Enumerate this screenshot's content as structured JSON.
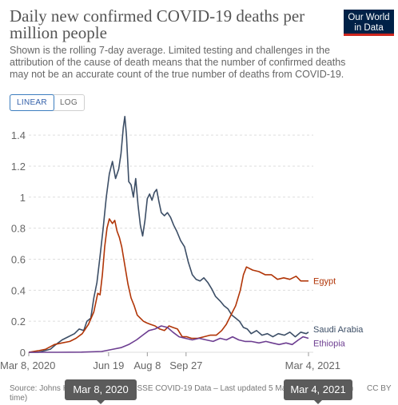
{
  "header": {
    "title": "Daily new confirmed COVID-19 deaths per million people",
    "subtitle": "Shown is the rolling 7-day average. Limited testing and challenges in the attribution of the cause of death means that the number of confirmed deaths may not be an accurate count of the true number of deaths from COVID-19.",
    "logo_line1": "Our World",
    "logo_line2": "in Data"
  },
  "controls": {
    "linear_label": "LINEAR",
    "log_label": "LOG",
    "active": "LINEAR"
  },
  "footer": {
    "source": "Source: Johns Hopkins University CSSE COVID-19 Data – Last updated 5 March, 10:05 (London time)",
    "license": "CC BY"
  },
  "timeline": {
    "start_label": "Mar 8, 2020",
    "end_label": "Mar 4, 2021"
  },
  "colors": {
    "saudi": "#3c4e66",
    "egypt": "#b13507",
    "ethiopia": "#6d3e91",
    "grid": "#dddddd",
    "axis_text": "#666666"
  },
  "chart_data": {
    "type": "line",
    "title": "Daily new confirmed COVID-19 deaths per million people",
    "x_type": "date",
    "xlim": [
      "2020-03-08",
      "2021-03-04"
    ],
    "ylim": [
      0,
      1.55
    ],
    "y_ticks": [
      0,
      0.2,
      0.4,
      0.6,
      0.8,
      1,
      1.2,
      1.4
    ],
    "y_tick_labels": [
      "0",
      "0.2",
      "0.4",
      "0.6",
      "0.8",
      "1",
      "1.2",
      "1.4"
    ],
    "x_ticks": [
      "2020-03-08",
      "2020-06-19",
      "2020-08-08",
      "2020-09-27",
      "2021-03-04"
    ],
    "x_tick_labels": [
      "Mar 8, 2020",
      "Jun 19",
      "Aug 8",
      "Sep 27",
      "Mar 4, 2021"
    ],
    "grid": "horizontal dashed",
    "legend": "line-end labels",
    "series": [
      {
        "name": "Saudi Arabia",
        "color": "#3c4e66",
        "points": [
          [
            "2020-03-08",
            0
          ],
          [
            "2020-03-20",
            0
          ],
          [
            "2020-03-28",
            0.01
          ],
          [
            "2020-04-05",
            0.02
          ],
          [
            "2020-04-12",
            0.05
          ],
          [
            "2020-04-20",
            0.08
          ],
          [
            "2020-04-28",
            0.1
          ],
          [
            "2020-05-06",
            0.12
          ],
          [
            "2020-05-12",
            0.15
          ],
          [
            "2020-05-18",
            0.14
          ],
          [
            "2020-05-22",
            0.2
          ],
          [
            "2020-05-27",
            0.22
          ],
          [
            "2020-05-31",
            0.35
          ],
          [
            "2020-06-04",
            0.45
          ],
          [
            "2020-06-08",
            0.62
          ],
          [
            "2020-06-12",
            0.8
          ],
          [
            "2020-06-16",
            1.0
          ],
          [
            "2020-06-20",
            1.15
          ],
          [
            "2020-06-24",
            1.23
          ],
          [
            "2020-06-28",
            1.12
          ],
          [
            "2020-07-02",
            1.18
          ],
          [
            "2020-07-05",
            1.28
          ],
          [
            "2020-07-08",
            1.45
          ],
          [
            "2020-07-10",
            1.52
          ],
          [
            "2020-07-12",
            1.4
          ],
          [
            "2020-07-15",
            1.1
          ],
          [
            "2020-07-18",
            1.08
          ],
          [
            "2020-07-21",
            1.0
          ],
          [
            "2020-07-24",
            1.12
          ],
          [
            "2020-07-27",
            0.95
          ],
          [
            "2020-07-30",
            0.82
          ],
          [
            "2020-08-02",
            0.75
          ],
          [
            "2020-08-05",
            0.85
          ],
          [
            "2020-08-08",
            0.99
          ],
          [
            "2020-08-11",
            1.02
          ],
          [
            "2020-08-14",
            0.98
          ],
          [
            "2020-08-17",
            1.03
          ],
          [
            "2020-08-20",
            1.05
          ],
          [
            "2020-08-23",
            0.97
          ],
          [
            "2020-08-26",
            0.9
          ],
          [
            "2020-08-30",
            0.88
          ],
          [
            "2020-09-03",
            0.9
          ],
          [
            "2020-09-07",
            0.87
          ],
          [
            "2020-09-11",
            0.82
          ],
          [
            "2020-09-15",
            0.78
          ],
          [
            "2020-09-20",
            0.72
          ],
          [
            "2020-09-25",
            0.68
          ],
          [
            "2020-09-30",
            0.58
          ],
          [
            "2020-10-05",
            0.5
          ],
          [
            "2020-10-10",
            0.47
          ],
          [
            "2020-10-15",
            0.46
          ],
          [
            "2020-10-20",
            0.48
          ],
          [
            "2020-10-25",
            0.45
          ],
          [
            "2020-10-30",
            0.41
          ],
          [
            "2020-11-04",
            0.36
          ],
          [
            "2020-11-10",
            0.33
          ],
          [
            "2020-11-15",
            0.3
          ],
          [
            "2020-11-20",
            0.28
          ],
          [
            "2020-11-25",
            0.24
          ],
          [
            "2020-11-30",
            0.22
          ],
          [
            "2020-12-05",
            0.2
          ],
          [
            "2020-12-10",
            0.16
          ],
          [
            "2020-12-15",
            0.15
          ],
          [
            "2020-12-20",
            0.12
          ],
          [
            "2020-12-27",
            0.14
          ],
          [
            "2021-01-03",
            0.11
          ],
          [
            "2021-01-10",
            0.12
          ],
          [
            "2021-01-17",
            0.1
          ],
          [
            "2021-01-24",
            0.12
          ],
          [
            "2021-02-01",
            0.11
          ],
          [
            "2021-02-08",
            0.13
          ],
          [
            "2021-02-15",
            0.1
          ],
          [
            "2021-02-22",
            0.13
          ],
          [
            "2021-03-01",
            0.12
          ],
          [
            "2021-03-04",
            0.13
          ]
        ]
      },
      {
        "name": "Egypt",
        "color": "#b13507",
        "points": [
          [
            "2020-03-08",
            0
          ],
          [
            "2020-03-20",
            0.01
          ],
          [
            "2020-03-30",
            0.02
          ],
          [
            "2020-04-10",
            0.05
          ],
          [
            "2020-04-20",
            0.06
          ],
          [
            "2020-04-30",
            0.07
          ],
          [
            "2020-05-08",
            0.09
          ],
          [
            "2020-05-16",
            0.12
          ],
          [
            "2020-05-24",
            0.18
          ],
          [
            "2020-05-31",
            0.26
          ],
          [
            "2020-06-05",
            0.38
          ],
          [
            "2020-06-08",
            0.37
          ],
          [
            "2020-06-11",
            0.5
          ],
          [
            "2020-06-14",
            0.68
          ],
          [
            "2020-06-17",
            0.8
          ],
          [
            "2020-06-20",
            0.86
          ],
          [
            "2020-06-24",
            0.83
          ],
          [
            "2020-06-27",
            0.85
          ],
          [
            "2020-06-30",
            0.78
          ],
          [
            "2020-07-03",
            0.74
          ],
          [
            "2020-07-06",
            0.68
          ],
          [
            "2020-07-10",
            0.56
          ],
          [
            "2020-07-14",
            0.44
          ],
          [
            "2020-07-18",
            0.35
          ],
          [
            "2020-07-22",
            0.3
          ],
          [
            "2020-07-26",
            0.24
          ],
          [
            "2020-07-30",
            0.22
          ],
          [
            "2020-08-03",
            0.2
          ],
          [
            "2020-08-07",
            0.19
          ],
          [
            "2020-08-12",
            0.18
          ],
          [
            "2020-08-18",
            0.17
          ],
          [
            "2020-08-24",
            0.15
          ],
          [
            "2020-08-30",
            0.14
          ],
          [
            "2020-09-05",
            0.17
          ],
          [
            "2020-09-10",
            0.16
          ],
          [
            "2020-09-16",
            0.15
          ],
          [
            "2020-09-22",
            0.1
          ],
          [
            "2020-09-28",
            0.1
          ],
          [
            "2020-10-04",
            0.09
          ],
          [
            "2020-10-12",
            0.09
          ],
          [
            "2020-10-20",
            0.1
          ],
          [
            "2020-10-28",
            0.11
          ],
          [
            "2020-11-05",
            0.11
          ],
          [
            "2020-11-12",
            0.14
          ],
          [
            "2020-11-18",
            0.18
          ],
          [
            "2020-11-24",
            0.24
          ],
          [
            "2020-11-30",
            0.3
          ],
          [
            "2020-12-06",
            0.4
          ],
          [
            "2020-12-10",
            0.5
          ],
          [
            "2020-12-14",
            0.55
          ],
          [
            "2020-12-22",
            0.53
          ],
          [
            "2020-12-30",
            0.52
          ],
          [
            "2021-01-07",
            0.5
          ],
          [
            "2021-01-15",
            0.5
          ],
          [
            "2021-01-23",
            0.47
          ],
          [
            "2021-01-31",
            0.48
          ],
          [
            "2021-02-08",
            0.47
          ],
          [
            "2021-02-16",
            0.49
          ],
          [
            "2021-02-22",
            0.46
          ],
          [
            "2021-03-04",
            0.46
          ]
        ]
      },
      {
        "name": "Ethiopia",
        "color": "#6d3e91",
        "points": [
          [
            "2020-03-08",
            0
          ],
          [
            "2020-04-15",
            0
          ],
          [
            "2020-05-15",
            0.001
          ],
          [
            "2020-06-10",
            0.005
          ],
          [
            "2020-06-25",
            0.02
          ],
          [
            "2020-07-05",
            0.03
          ],
          [
            "2020-07-15",
            0.05
          ],
          [
            "2020-07-25",
            0.08
          ],
          [
            "2020-08-02",
            0.11
          ],
          [
            "2020-08-10",
            0.14
          ],
          [
            "2020-08-18",
            0.15
          ],
          [
            "2020-08-26",
            0.17
          ],
          [
            "2020-09-03",
            0.16
          ],
          [
            "2020-09-10",
            0.13
          ],
          [
            "2020-09-18",
            0.1
          ],
          [
            "2020-09-26",
            0.09
          ],
          [
            "2020-10-05",
            0.08
          ],
          [
            "2020-10-14",
            0.09
          ],
          [
            "2020-10-23",
            0.08
          ],
          [
            "2020-11-01",
            0.07
          ],
          [
            "2020-11-10",
            0.09
          ],
          [
            "2020-11-18",
            0.08
          ],
          [
            "2020-11-26",
            0.1
          ],
          [
            "2020-12-04",
            0.08
          ],
          [
            "2020-12-12",
            0.07
          ],
          [
            "2020-12-20",
            0.07
          ],
          [
            "2020-12-30",
            0.06
          ],
          [
            "2021-01-08",
            0.07
          ],
          [
            "2021-01-16",
            0.06
          ],
          [
            "2021-01-25",
            0.05
          ],
          [
            "2021-02-03",
            0.06
          ],
          [
            "2021-02-11",
            0.05
          ],
          [
            "2021-02-19",
            0.08
          ],
          [
            "2021-02-25",
            0.1
          ],
          [
            "2021-03-04",
            0.09
          ]
        ]
      }
    ]
  }
}
